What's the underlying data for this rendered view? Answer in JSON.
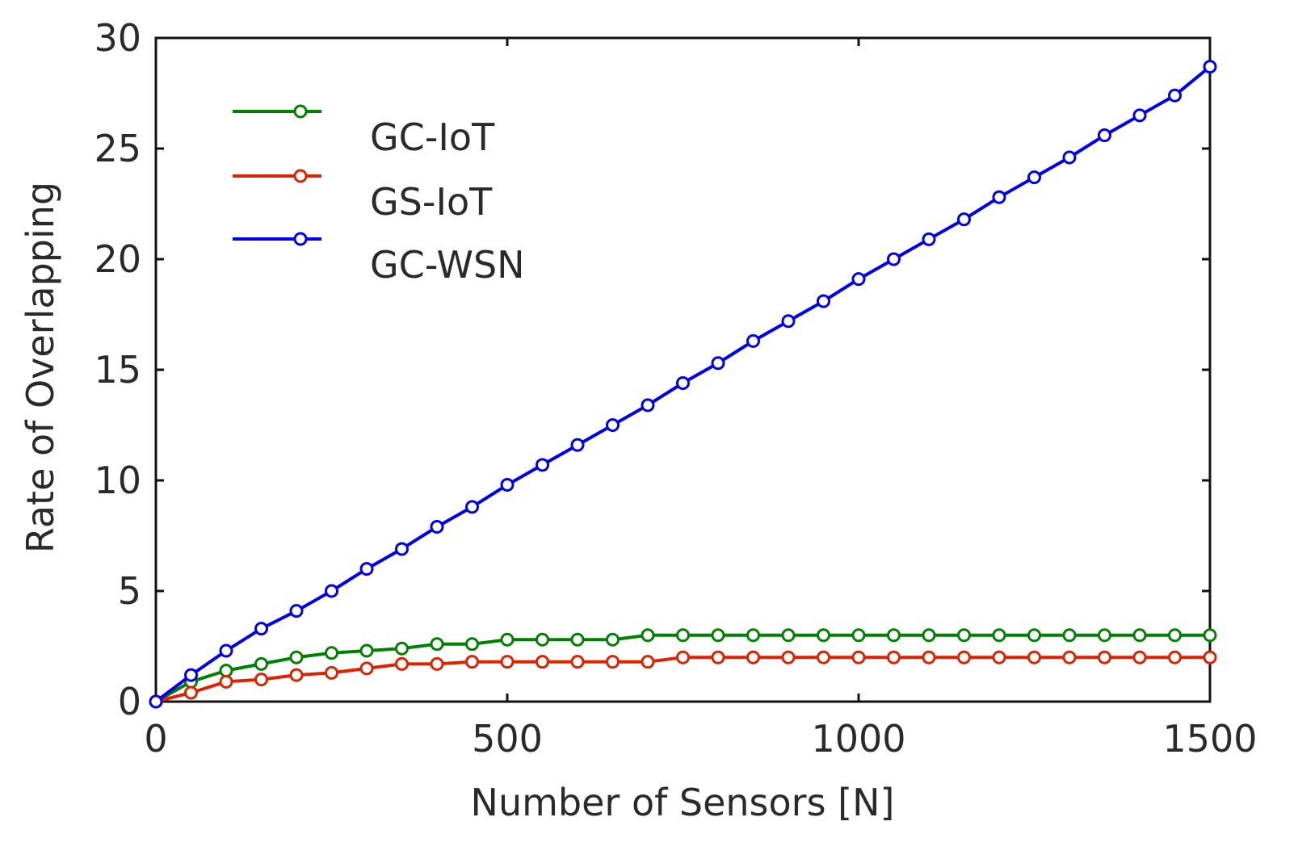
{
  "chart_data": {
    "type": "line",
    "title": "",
    "xlabel": "Number of Sensors [N]",
    "ylabel": "Rate of Overlapping",
    "xlim": [
      0,
      1500
    ],
    "ylim": [
      0,
      30
    ],
    "xticks": [
      0,
      500,
      1000,
      1500
    ],
    "yticks": [
      0,
      5,
      10,
      15,
      20,
      25,
      30
    ],
    "xtick_labels": [
      "0",
      "500",
      "1000",
      "1500"
    ],
    "ytick_labels": [
      "0",
      "5",
      "10",
      "15",
      "20",
      "25",
      "30"
    ],
    "grid": false,
    "legend_position": "top-left",
    "series": [
      {
        "name": "GC-IoT",
        "color": "#008000",
        "marker": "circle",
        "x": [
          0,
          50,
          100,
          150,
          200,
          250,
          300,
          350,
          400,
          450,
          500,
          550,
          600,
          650,
          700,
          750,
          800,
          850,
          900,
          950,
          1000,
          1050,
          1100,
          1150,
          1200,
          1250,
          1300,
          1350,
          1400,
          1450,
          1500
        ],
        "y": [
          0,
          0.9,
          1.4,
          1.7,
          2.0,
          2.2,
          2.3,
          2.4,
          2.6,
          2.6,
          2.8,
          2.8,
          2.8,
          2.8,
          3.0,
          3.0,
          3.0,
          3.0,
          3.0,
          3.0,
          3.0,
          3.0,
          3.0,
          3.0,
          3.0,
          3.0,
          3.0,
          3.0,
          3.0,
          3.0,
          3.0
        ]
      },
      {
        "name": "GS-IoT",
        "color": "#dd2200",
        "marker": "circle",
        "x": [
          0,
          50,
          100,
          150,
          200,
          250,
          300,
          350,
          400,
          450,
          500,
          550,
          600,
          650,
          700,
          750,
          800,
          850,
          900,
          950,
          1000,
          1050,
          1100,
          1150,
          1200,
          1250,
          1300,
          1350,
          1400,
          1450,
          1500
        ],
        "y": [
          0,
          0.4,
          0.9,
          1.0,
          1.2,
          1.3,
          1.5,
          1.7,
          1.7,
          1.8,
          1.8,
          1.8,
          1.8,
          1.8,
          1.8,
          2.0,
          2.0,
          2.0,
          2.0,
          2.0,
          2.0,
          2.0,
          2.0,
          2.0,
          2.0,
          2.0,
          2.0,
          2.0,
          2.0,
          2.0,
          2.0
        ]
      },
      {
        "name": "GC-WSN",
        "color": "#0000ee",
        "marker": "circle",
        "x": [
          0,
          50,
          100,
          150,
          200,
          250,
          300,
          350,
          400,
          450,
          500,
          550,
          600,
          650,
          700,
          750,
          800,
          850,
          900,
          950,
          1000,
          1050,
          1100,
          1150,
          1200,
          1250,
          1300,
          1350,
          1400,
          1450,
          1500
        ],
        "y": [
          0,
          1.2,
          2.3,
          3.3,
          4.1,
          5.0,
          6.0,
          6.9,
          7.9,
          8.8,
          9.8,
          10.7,
          11.6,
          12.5,
          13.4,
          14.4,
          15.3,
          16.3,
          17.2,
          18.1,
          19.1,
          20.0,
          20.9,
          21.8,
          22.8,
          23.7,
          24.6,
          25.6,
          26.5,
          27.4,
          28.7
        ]
      }
    ]
  }
}
